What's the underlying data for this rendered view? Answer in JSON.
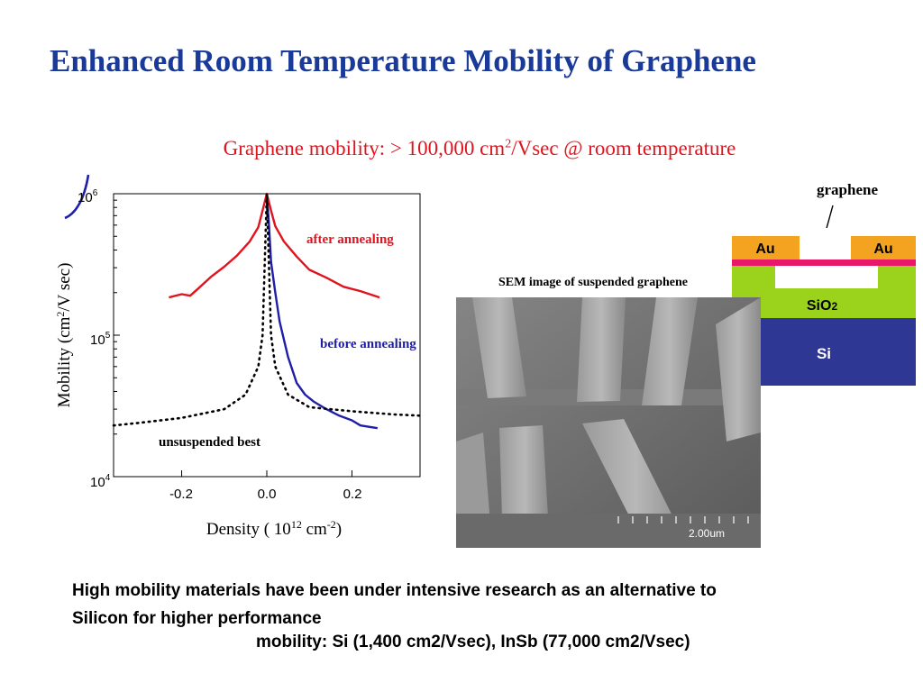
{
  "slide": {
    "title": "Enhanced Room Temperature Mobility of Graphene",
    "subtitle": {
      "before": "Graphene mobility: > 100,000 cm",
      "sup": "2",
      "after": "/Vsec @ room temperature"
    },
    "bottom_line1": "High mobility materials have been under intensive research as an alternative to",
    "bottom_line2": "Silicon for higher performance",
    "bottom_line3": "mobility: Si (1,400 cm2/Vsec), InSb (77,000 cm2/Vsec)"
  },
  "diagram": {
    "pointer_label": "graphene",
    "layers": {
      "au_left": "Au",
      "au_right": "Au",
      "sio2": "SiO",
      "sio2_sub": "2",
      "si": "Si"
    },
    "colors": {
      "au": "#f4a320",
      "graphene": "#e8176a",
      "sio2": "#9ad21c",
      "si": "#2e3794"
    }
  },
  "sem": {
    "caption": "SEM image of suspended graphene",
    "scale_label": "2.00um"
  },
  "chart_data": {
    "type": "line",
    "ylabel": "Mobility (cm²/V sec)",
    "xlabel": "Density ( 10¹² cm⁻²)",
    "xlabel_parts": {
      "main": "Density ( 10",
      "sup1": "12",
      "mid": " cm",
      "sup2": "-2",
      "end": ")"
    },
    "ylabel_parts": {
      "main": "Mobility (cm",
      "sup": "2",
      "end": "/V sec)"
    },
    "x_ticks": [
      "-0.2",
      "0.0",
      "0.2"
    ],
    "x_tick_values": [
      -0.2,
      0.0,
      0.2
    ],
    "y_ticks": [
      {
        "base": "10",
        "exp": "4"
      },
      {
        "base": "10",
        "exp": "5"
      },
      {
        "base": "10",
        "exp": "6"
      }
    ],
    "y_tick_values": [
      10000,
      100000,
      1000000
    ],
    "xlim": [
      -0.36,
      0.36
    ],
    "ylim": [
      10000,
      1000000
    ],
    "y_scale": "log",
    "grid": false,
    "series": [
      {
        "name": "after annealing",
        "color": "#e0141e",
        "style": "solid",
        "points": [
          [
            -0.23,
            185000
          ],
          [
            -0.2,
            195000
          ],
          [
            -0.18,
            190000
          ],
          [
            -0.16,
            215000
          ],
          [
            -0.13,
            260000
          ],
          [
            -0.1,
            305000
          ],
          [
            -0.07,
            365000
          ],
          [
            -0.04,
            460000
          ],
          [
            -0.02,
            580000
          ],
          [
            -0.01,
            760000
          ],
          [
            0.0,
            1000000
          ],
          [
            0.01,
            760000
          ],
          [
            0.02,
            590000
          ],
          [
            0.04,
            460000
          ],
          [
            0.07,
            360000
          ],
          [
            0.1,
            290000
          ],
          [
            0.14,
            255000
          ],
          [
            0.18,
            220000
          ],
          [
            0.22,
            205000
          ],
          [
            0.265,
            185000
          ]
        ]
      },
      {
        "name": "before annealing",
        "color": "#1e1ea8",
        "style": "solid",
        "points": [
          [
            0.0,
            1000000
          ],
          [
            0.005,
            600000
          ],
          [
            0.01,
            330000
          ],
          [
            0.02,
            200000
          ],
          [
            0.03,
            125000
          ],
          [
            0.05,
            70000
          ],
          [
            0.07,
            46000
          ],
          [
            0.09,
            38000
          ],
          [
            0.11,
            34000
          ],
          [
            0.14,
            30000
          ],
          [
            0.17,
            27000
          ],
          [
            0.2,
            25000
          ],
          [
            0.22,
            23000
          ],
          [
            0.26,
            22000
          ]
        ]
      },
      {
        "name": "unsuspended best",
        "color": "#000000",
        "style": "dotted",
        "points": [
          [
            -0.36,
            23000
          ],
          [
            -0.3,
            24000
          ],
          [
            -0.2,
            26000
          ],
          [
            -0.1,
            30000
          ],
          [
            -0.05,
            38000
          ],
          [
            -0.02,
            60000
          ],
          [
            -0.01,
            100000
          ],
          [
            0.0,
            1000000
          ],
          [
            0.01,
            100000
          ],
          [
            0.02,
            60000
          ],
          [
            0.05,
            38000
          ],
          [
            0.1,
            31000
          ],
          [
            0.2,
            29000
          ],
          [
            0.3,
            27500
          ],
          [
            0.36,
            27000
          ]
        ]
      }
    ]
  }
}
